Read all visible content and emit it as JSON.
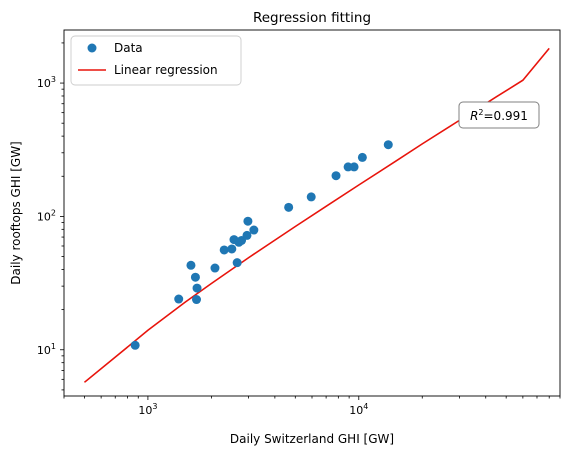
{
  "chart_data": {
    "type": "scatter",
    "title": "Regression fitting",
    "xlabel": "Daily Switzerland GHI [GW]",
    "ylabel": "Daily rooftops GHI [GW]",
    "xscale": "log",
    "yscale": "log",
    "xlim": [
      400,
      90000
    ],
    "ylim": [
      4.5,
      2500
    ],
    "x_major_ticks": [
      {
        "value": 1000,
        "base": "10",
        "exp": "3"
      },
      {
        "value": 10000,
        "base": "10",
        "exp": "4"
      }
    ],
    "y_major_ticks": [
      {
        "value": 10,
        "base": "10",
        "exp": "1"
      },
      {
        "value": 100,
        "base": "10",
        "exp": "2"
      },
      {
        "value": 1000,
        "base": "10",
        "exp": "3"
      }
    ],
    "grid": false,
    "legend": {
      "position": "top-left",
      "entries": [
        {
          "label": "Data",
          "marker": "circle",
          "color": "#1f77b4"
        },
        {
          "label": "Linear regression",
          "marker": "line",
          "color": "#e8140c"
        }
      ]
    },
    "annotation": {
      "r_symbol": "R",
      "r_exp": "2",
      "text": "=0.991",
      "position": "top-right"
    },
    "series": [
      {
        "name": "Data",
        "kind": "scatter",
        "color": "#1f77b4",
        "points": [
          {
            "x": 870,
            "y": 10.8
          },
          {
            "x": 1400,
            "y": 24
          },
          {
            "x": 1600,
            "y": 43
          },
          {
            "x": 1680,
            "y": 35
          },
          {
            "x": 1700,
            "y": 23.8
          },
          {
            "x": 1710,
            "y": 29
          },
          {
            "x": 2080,
            "y": 41
          },
          {
            "x": 2300,
            "y": 56
          },
          {
            "x": 2500,
            "y": 57
          },
          {
            "x": 2560,
            "y": 67
          },
          {
            "x": 2650,
            "y": 45
          },
          {
            "x": 2700,
            "y": 64
          },
          {
            "x": 2780,
            "y": 66
          },
          {
            "x": 2950,
            "y": 72
          },
          {
            "x": 2980,
            "y": 92
          },
          {
            "x": 3180,
            "y": 79
          },
          {
            "x": 4650,
            "y": 117
          },
          {
            "x": 5950,
            "y": 140
          },
          {
            "x": 7800,
            "y": 202
          },
          {
            "x": 8900,
            "y": 235
          },
          {
            "x": 9500,
            "y": 235
          },
          {
            "x": 10400,
            "y": 277
          },
          {
            "x": 13800,
            "y": 345
          }
        ]
      },
      {
        "name": "Linear regression",
        "kind": "line",
        "color": "#e8140c",
        "points": [
          {
            "x": 500,
            "y": 5.7
          },
          {
            "x": 700,
            "y": 8.8
          },
          {
            "x": 1000,
            "y": 14.0
          },
          {
            "x": 1500,
            "y": 22.7
          },
          {
            "x": 2000,
            "y": 31.4
          },
          {
            "x": 3000,
            "y": 49.0
          },
          {
            "x": 5000,
            "y": 84.0
          },
          {
            "x": 7000,
            "y": 119
          },
          {
            "x": 10000,
            "y": 172
          },
          {
            "x": 15000,
            "y": 260
          },
          {
            "x": 20000,
            "y": 350
          },
          {
            "x": 30000,
            "y": 525
          },
          {
            "x": 45000,
            "y": 790
          },
          {
            "x": 60000,
            "y": 1050
          },
          {
            "x": 80000,
            "y": 1820
          }
        ]
      }
    ]
  }
}
